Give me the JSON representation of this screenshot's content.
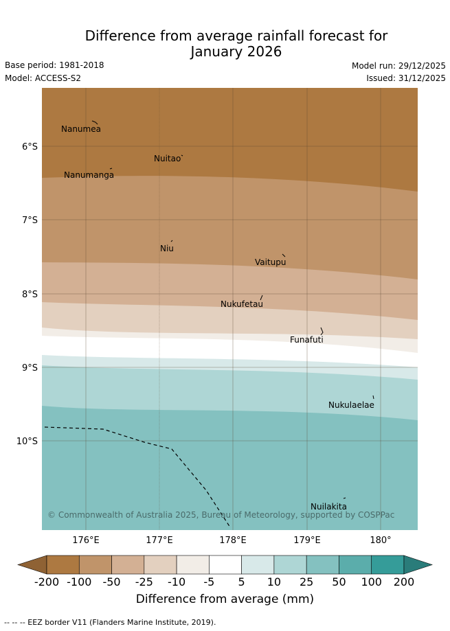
{
  "title_line1": "Difference from average rainfall forecast for",
  "title_line2": "January 2026",
  "base_period": "Base period: 1981-2018",
  "model": "Model: ACCESS-S2",
  "model_run": "Model run: 29/12/2025",
  "issued": "Issued: 31/12/2025",
  "copyright": "© Commonwealth of Australia 2025, Bureau of Meteorology, supported by COSPPac",
  "lat_labels": [
    "6°S",
    "7°S",
    "8°S",
    "9°S",
    "10°S"
  ],
  "lon_labels": [
    "176°E",
    "177°E",
    "178°E",
    "179°E",
    "180°"
  ],
  "islands": [
    "Nanumea",
    "Nuitao",
    "Nanumanga",
    "Niu",
    "Vaitupu",
    "Nukufetau",
    "Funafuti",
    "Nukulaelae",
    "Nuilakita"
  ],
  "colorbar": {
    "ticks": [
      "-200",
      "-100",
      "-50",
      "-25",
      "-10",
      "-5",
      "5",
      "10",
      "25",
      "50",
      "100",
      "200"
    ],
    "colors": [
      "#ad7941",
      "#c0946a",
      "#d3b094",
      "#e3d0bf",
      "#f2ede7",
      "#ffffff",
      "#d8e9e9",
      "#aed6d5",
      "#84c1c0",
      "#5badab",
      "#359c99"
    ],
    "under_color": "#8f6234",
    "over_color": "#2a7c7a",
    "title": "Difference from average (mm)"
  },
  "footer": "-- -- -- EEZ border V11 (Flanders Marine Institute, 2019)."
}
